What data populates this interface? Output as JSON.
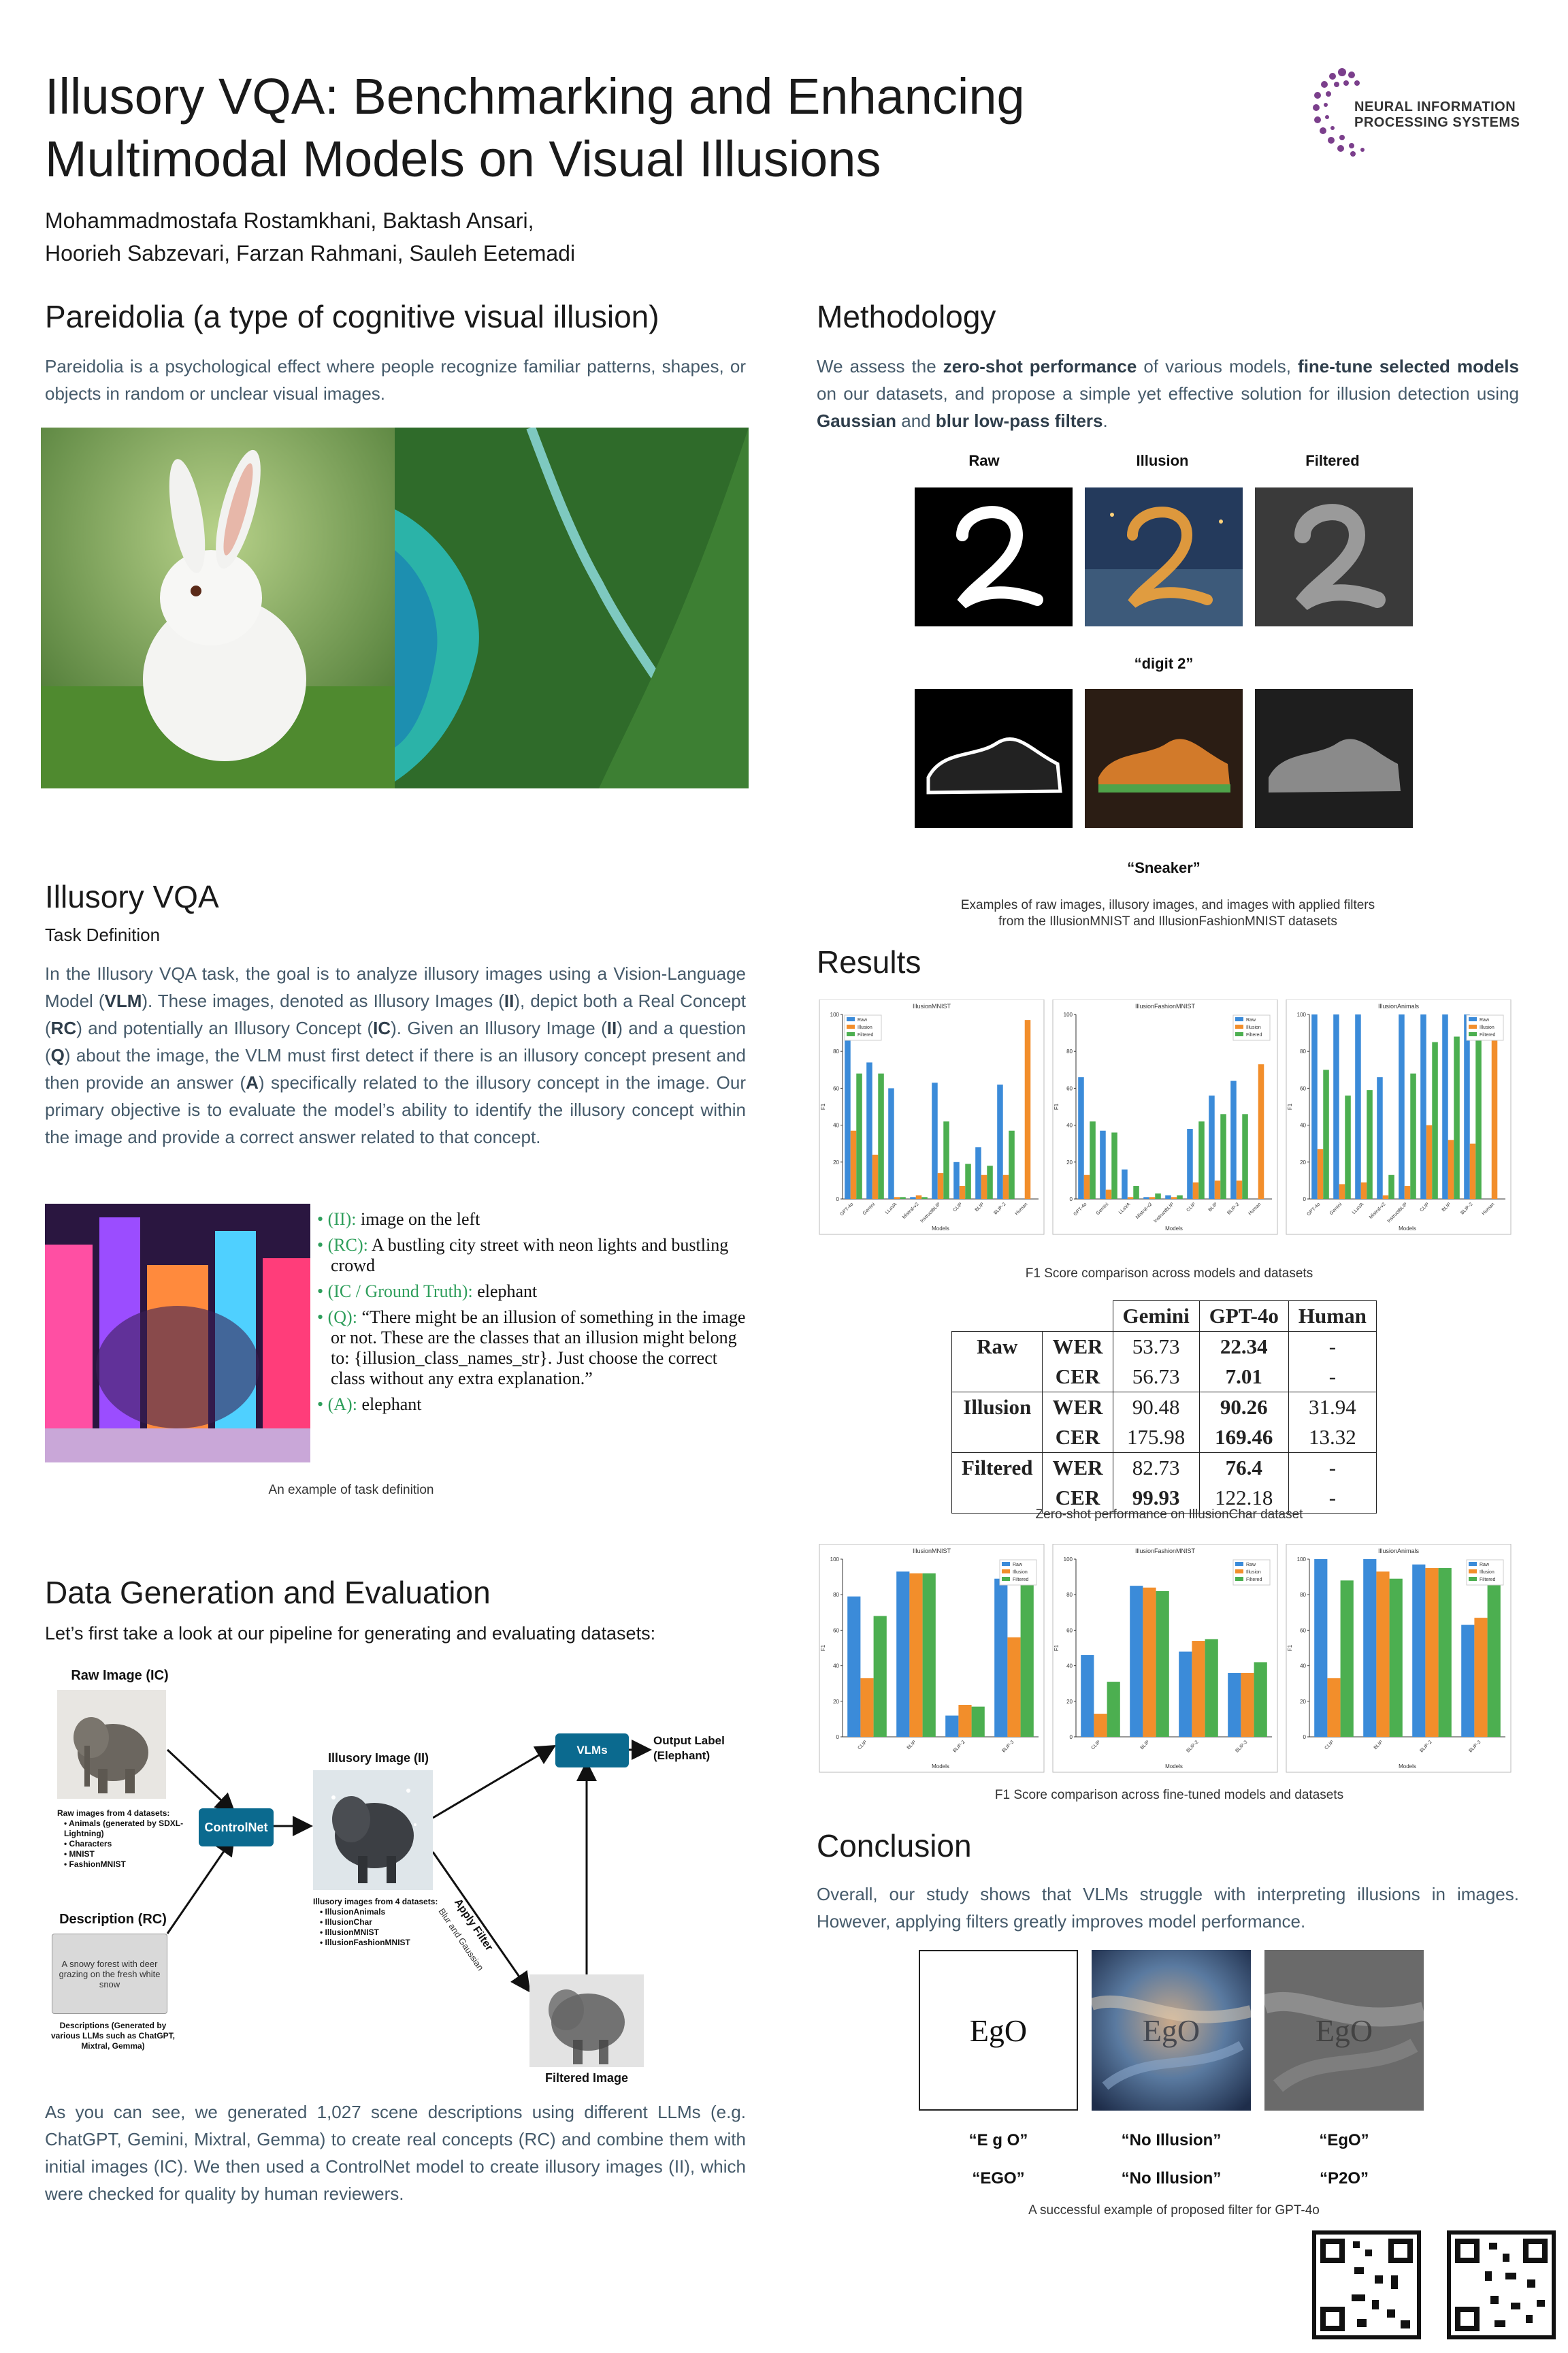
{
  "header": {
    "title_line1": "Illusory VQA: Benchmarking and Enhancing",
    "title_line2": "Multimodal Models on Visual Illusions",
    "authors_line1": "Mohammadmostafa Rostamkhani, Baktash Ansari,",
    "authors_line2": "Hoorieh Sabzevari, Farzan Rahmani, Sauleh Eetemadi",
    "logo_line1": "NEURAL INFORMATION",
    "logo_line2": "PROCESSING SYSTEMS",
    "logo_color": "#7b3f8c"
  },
  "pareidolia": {
    "heading": "Pareidolia (a type of cognitive visual illusion)",
    "text": "Pareidolia is a psychological effect where people recognize familiar patterns, shapes, or objects in random or unclear visual images."
  },
  "illusory_vqa": {
    "heading": "Illusory VQA",
    "subheading": "Task Definition",
    "text_parts": [
      "In the Illusory VQA task, the goal is to analyze illusory images using a Vision-Language Model (",
      "VLM",
      "). These images, denoted as Illusory Images (",
      "II",
      "), depict both a Real Concept (",
      "RC",
      ") and potentially an Illusory Concept (",
      "IC",
      "). Given an Illusory Image (",
      "II",
      ") and a question (",
      "Q",
      ") about the image, the VLM must first detect if there is an illusory concept present and then provide an answer (",
      "A",
      ") specifically related to the illusory concept in the image. Our primary objective is to evaluate the model’s ability to identify the illusory concept within the image and provide a correct answer related to that concept."
    ],
    "bullets": [
      {
        "key": "(II):",
        "value": " image on the left"
      },
      {
        "key": "(RC):",
        "value": " A bustling city street with neon lights and bustling crowd"
      },
      {
        "key": "(IC / Ground Truth):",
        "value": " elephant"
      },
      {
        "key": "(Q):",
        "value": " “There might be an illusion of something in the image or not. These are the classes that an illusion might belong to: {illusion_class_names_str}. Just choose the correct class without any extra explanation.”"
      },
      {
        "key": "(A):",
        "value": " elephant"
      }
    ],
    "caption": "An example of task definition",
    "key_color": "#2e9e5b"
  },
  "data_gen": {
    "heading": "Data Generation and Evaluation",
    "intro": "Let’s first take a look at our pipeline for generating and evaluating datasets:",
    "raw_image_title": "Raw Image (IC)",
    "raw_sources_title": "Raw images from 4 datasets:",
    "raw_sources": [
      "Animals (generated by SDXL-Lightning)",
      "Characters",
      "MNIST",
      "FashionMNIST"
    ],
    "description_title": "Description (RC)",
    "description_box": "A snowy forest with deer grazing on the fresh white snow",
    "descriptions_note": "Descriptions (Generated by various LLMs such as ChatGPT, Mixtral, Gemma)",
    "controlnet": "ControlNet",
    "illusory_title": "Illusory Image (II)",
    "illusory_sources_title": "Illusory images from 4 datasets:",
    "illusory_sources": [
      "IllusionAnimals",
      "IllusionChar",
      "IllusionMNIST",
      "IllusionFashionMNIST"
    ],
    "vlms": "VLMs",
    "output_label": "Output Label (Elephant)",
    "apply_filter": "Apply Filter",
    "filter_kinds": "Blur and Gaussian",
    "filtered_title": "Filtered Image",
    "closing": "As you can see, we generated 1,027 scene descriptions using different LLMs (e.g. ChatGPT, Gemini, Mixtral, Gemma) to create real concepts (RC) and combine them with initial images (IC). We then used a ControlNet model to create illusory images (II), which were checked for quality by human reviewers.",
    "accent_color": "#0b6a8f"
  },
  "methodology": {
    "heading": "Methodology",
    "text_parts": [
      "We assess the ",
      "zero-shot performance",
      " of various models, ",
      "fine-tune selected models",
      " on our datasets, and propose a simple yet effective solution for illusion detection using ",
      "Gaussian",
      " and ",
      "blur low-pass filters",
      "."
    ],
    "column_labels": [
      "Raw",
      "Illusion",
      "Filtered"
    ],
    "row_labels": [
      "“digit 2”",
      "“Sneaker”"
    ],
    "caption_line1": "Examples of raw images, illusory images, and images with applied filters",
    "caption_line2": "from the IllusionMNIST and IllusionFashionMNIST datasets"
  },
  "results": {
    "heading": "Results",
    "chart1_caption": "F1 Score comparison across models and datasets",
    "table_caption": "Zero-shot performance on IllusionChar dataset",
    "chart2_caption": "F1 Score comparison across fine-tuned models and datasets",
    "table": {
      "headers": [
        "Gemini",
        "GPT-4o",
        "Human"
      ],
      "groups": [
        {
          "name": "Raw",
          "rows": [
            {
              "metric": "WER",
              "values": [
                "53.73",
                "22.34",
                "-"
              ],
              "bold": [
                false,
                true,
                false
              ]
            },
            {
              "metric": "CER",
              "values": [
                "56.73",
                "7.01",
                "-"
              ],
              "bold": [
                false,
                true,
                false
              ]
            }
          ]
        },
        {
          "name": "Illusion",
          "rows": [
            {
              "metric": "WER",
              "values": [
                "90.48",
                "90.26",
                "31.94"
              ],
              "bold": [
                false,
                true,
                false
              ]
            },
            {
              "metric": "CER",
              "values": [
                "175.98",
                "169.46",
                "13.32"
              ],
              "bold": [
                false,
                true,
                false
              ]
            }
          ]
        },
        {
          "name": "Filtered",
          "rows": [
            {
              "metric": "WER",
              "values": [
                "82.73",
                "76.4",
                "-"
              ],
              "bold": [
                false,
                true,
                false
              ]
            },
            {
              "metric": "CER",
              "values": [
                "99.93",
                "122.18",
                "-"
              ],
              "bold": [
                true,
                false,
                false
              ]
            }
          ]
        }
      ]
    }
  },
  "conclusion": {
    "heading": "Conclusion",
    "text": "Overall, our study shows that VLMs struggle with interpreting illusions in images. However, applying filters greatly improves model performance.",
    "ego_text": "EgO",
    "row1_labels": [
      "“E g O”",
      "“No Illusion”",
      "“EgO”"
    ],
    "row2_labels": [
      "“EGO”",
      "“No Illusion”",
      "“P2O”"
    ],
    "caption": "A successful example of proposed filter for GPT-4o"
  },
  "chart_data": [
    {
      "type": "bar",
      "title": "IllusionMNIST",
      "xlabel": "Models",
      "ylabel": "F1",
      "ylim": [
        0,
        100
      ],
      "legend_placement": "top-left",
      "categories": [
        "GPT-4o",
        "Gemini",
        "LLaVA",
        "Mistral-v2",
        "InstructBLIP",
        "CLIP",
        "BLIP",
        "BLIP-2",
        "Human"
      ],
      "series": [
        {
          "name": "Raw",
          "color": "#3b8bd9",
          "values": [
            87,
            74,
            60,
            1,
            63,
            20,
            28,
            62,
            0
          ]
        },
        {
          "name": "Illusion",
          "color": "#f28e2b",
          "values": [
            37,
            24,
            1,
            2,
            14,
            7,
            13,
            13,
            97
          ]
        },
        {
          "name": "Filtered",
          "color": "#4caf50",
          "values": [
            68,
            68,
            1,
            1,
            42,
            19,
            18,
            37,
            0
          ]
        }
      ]
    },
    {
      "type": "bar",
      "title": "IllusionFashionMNIST",
      "xlabel": "Models",
      "ylabel": "F1",
      "ylim": [
        0,
        100
      ],
      "legend_placement": "top-right",
      "categories": [
        "GPT-4o",
        "Gemini",
        "LLaVA",
        "Mistral-v2",
        "InstructBLIP",
        "CLIP",
        "BLIP",
        "BLIP-2",
        "Human"
      ],
      "series": [
        {
          "name": "Raw",
          "color": "#3b8bd9",
          "values": [
            66,
            37,
            16,
            1,
            2,
            38,
            56,
            64,
            0
          ]
        },
        {
          "name": "Illusion",
          "color": "#f28e2b",
          "values": [
            13,
            5,
            1,
            1,
            1,
            9,
            10,
            10,
            73
          ]
        },
        {
          "name": "Filtered",
          "color": "#4caf50",
          "values": [
            42,
            36,
            7,
            3,
            2,
            42,
            46,
            46,
            0
          ]
        }
      ]
    },
    {
      "type": "bar",
      "title": "IllusionAnimals",
      "xlabel": "Models",
      "ylabel": "F1",
      "ylim": [
        0,
        100
      ],
      "legend_placement": "top-right",
      "categories": [
        "GPT-4o",
        "Gemini",
        "LLaVA",
        "Mistral-v2",
        "InstructBLIP",
        "CLIP",
        "BLIP",
        "BLIP-2",
        "Human"
      ],
      "series": [
        {
          "name": "Raw",
          "color": "#3b8bd9",
          "values": [
            100,
            100,
            100,
            66,
            100,
            100,
            100,
            100,
            0
          ]
        },
        {
          "name": "Illusion",
          "color": "#f28e2b",
          "values": [
            27,
            8,
            9,
            2,
            7,
            40,
            32,
            30,
            91
          ]
        },
        {
          "name": "Filtered",
          "color": "#4caf50",
          "values": [
            70,
            56,
            59,
            13,
            68,
            85,
            88,
            95,
            0
          ]
        }
      ]
    },
    {
      "type": "bar",
      "title": "IllusionMNIST",
      "xlabel": "Models",
      "ylabel": "F1",
      "ylim": [
        0,
        100
      ],
      "legend_placement": "top-right",
      "categories": [
        "CLIP",
        "BLIP",
        "BLIP-2",
        "BLIP-3"
      ],
      "series": [
        {
          "name": "Raw",
          "color": "#3b8bd9",
          "values": [
            79,
            93,
            12,
            89
          ]
        },
        {
          "name": "Illusion",
          "color": "#f28e2b",
          "values": [
            33,
            92,
            18,
            56
          ]
        },
        {
          "name": "Filtered",
          "color": "#4caf50",
          "values": [
            68,
            92,
            17,
            86
          ]
        }
      ]
    },
    {
      "type": "bar",
      "title": "IllusionFashionMNIST",
      "xlabel": "Models",
      "ylabel": "F1",
      "ylim": [
        0,
        100
      ],
      "legend_placement": "top-right",
      "categories": [
        "CLIP",
        "BLIP",
        "BLIP-2",
        "BLIP-3"
      ],
      "series": [
        {
          "name": "Raw",
          "color": "#3b8bd9",
          "values": [
            46,
            85,
            48,
            36
          ]
        },
        {
          "name": "Illusion",
          "color": "#f28e2b",
          "values": [
            13,
            84,
            54,
            36
          ]
        },
        {
          "name": "Filtered",
          "color": "#4caf50",
          "values": [
            31,
            82,
            55,
            42
          ]
        }
      ]
    },
    {
      "type": "bar",
      "title": "IllusionAnimals",
      "xlabel": "Models",
      "ylabel": "F1",
      "ylim": [
        0,
        100
      ],
      "legend_placement": "top-right",
      "categories": [
        "CLIP",
        "BLIP",
        "BLIP-2",
        "BLIP-3"
      ],
      "series": [
        {
          "name": "Raw",
          "color": "#3b8bd9",
          "values": [
            100,
            100,
            97,
            63
          ]
        },
        {
          "name": "Illusion",
          "color": "#f28e2b",
          "values": [
            33,
            93,
            95,
            67
          ]
        },
        {
          "name": "Filtered",
          "color": "#4caf50",
          "values": [
            88,
            89,
            95,
            88
          ]
        }
      ]
    }
  ]
}
